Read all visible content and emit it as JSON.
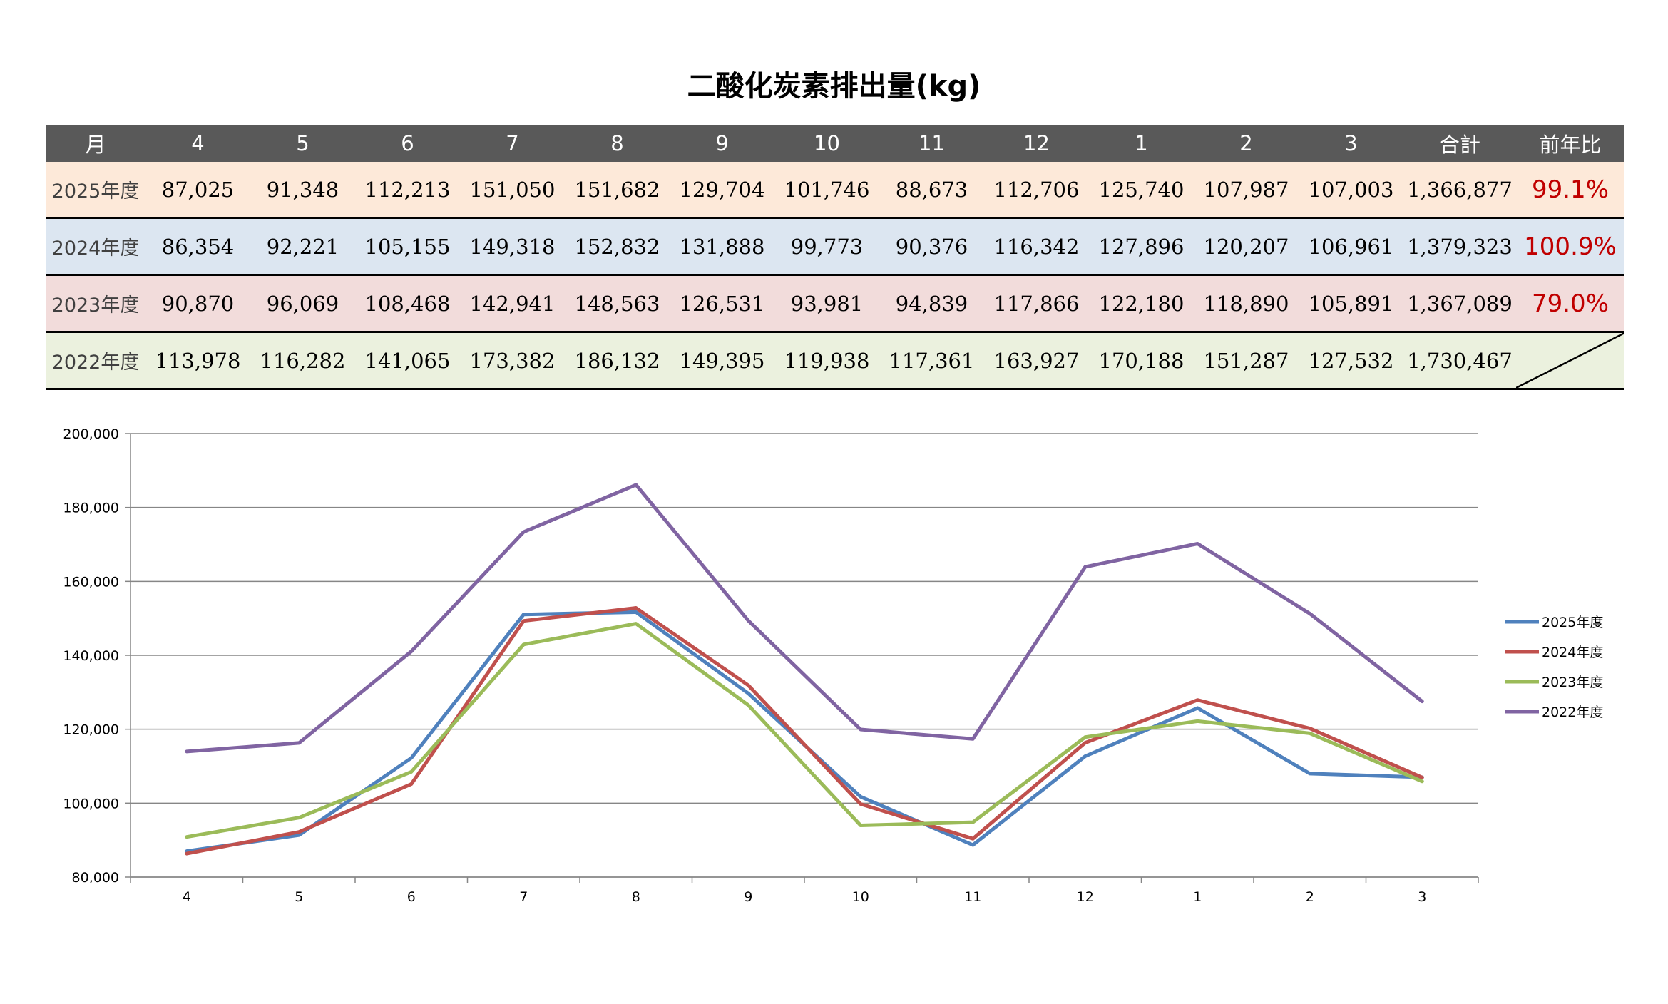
{
  "title": "二酸化炭素排出量(kg)",
  "table": {
    "header": [
      "月",
      "4",
      "5",
      "6",
      "7",
      "8",
      "9",
      "10",
      "11",
      "12",
      "1",
      "2",
      "3",
      "合計",
      "前年比"
    ],
    "rows": [
      {
        "label": "2025年度",
        "bg": "#fde9d9",
        "values": [
          "87,025",
          "91,348",
          "112,213",
          "151,050",
          "151,682",
          "129,704",
          "101,746",
          "88,673",
          "112,706",
          "125,740",
          "107,987",
          "107,003"
        ],
        "total": "1,366,877",
        "ratio": "99.1%"
      },
      {
        "label": "2024年度",
        "bg": "#dce6f1",
        "values": [
          "86,354",
          "92,221",
          "105,155",
          "149,318",
          "152,832",
          "131,888",
          "99,773",
          "90,376",
          "116,342",
          "127,896",
          "120,207",
          "106,961"
        ],
        "total": "1,379,323",
        "ratio": "100.9%"
      },
      {
        "label": "2023年度",
        "bg": "#f2dcdb",
        "values": [
          "90,870",
          "96,069",
          "108,468",
          "142,941",
          "148,563",
          "126,531",
          "93,981",
          "94,839",
          "117,866",
          "122,180",
          "118,890",
          "105,891"
        ],
        "total": "1,367,089",
        "ratio": "79.0%"
      },
      {
        "label": "2022年度",
        "bg": "#ebf1de",
        "values": [
          "113,978",
          "116,282",
          "141,065",
          "173,382",
          "186,132",
          "149,395",
          "119,938",
          "117,361",
          "163,927",
          "170,188",
          "151,287",
          "127,532"
        ],
        "total": "1,730,467",
        "ratio": ""
      }
    ]
  },
  "chart_data": {
    "type": "line",
    "categories": [
      "4",
      "5",
      "6",
      "7",
      "8",
      "9",
      "10",
      "11",
      "12",
      "1",
      "2",
      "3"
    ],
    "ylim": [
      80000,
      200000
    ],
    "yticks": [
      80000,
      100000,
      120000,
      140000,
      160000,
      180000,
      200000
    ],
    "ytick_labels": [
      "80,000",
      "100,000",
      "120,000",
      "140,000",
      "160,000",
      "180,000",
      "200,000"
    ],
    "grid": true,
    "legend_position": "right",
    "series": [
      {
        "name": "2025年度",
        "color": "#4f81bd",
        "values": [
          87025,
          91348,
          112213,
          151050,
          151682,
          129704,
          101746,
          88673,
          112706,
          125740,
          107987,
          107003
        ]
      },
      {
        "name": "2024年度",
        "color": "#c0504d",
        "values": [
          86354,
          92221,
          105155,
          149318,
          152832,
          131888,
          99773,
          90376,
          116342,
          127896,
          120207,
          106961
        ]
      },
      {
        "name": "2023年度",
        "color": "#9bbb59",
        "values": [
          90870,
          96069,
          108468,
          142941,
          148563,
          126531,
          93981,
          94839,
          117866,
          122180,
          118890,
          105891
        ]
      },
      {
        "name": "2022年度",
        "color": "#8064a2",
        "values": [
          113978,
          116282,
          141065,
          173382,
          186132,
          149395,
          119938,
          117361,
          163927,
          170188,
          151287,
          127532
        ]
      }
    ]
  }
}
